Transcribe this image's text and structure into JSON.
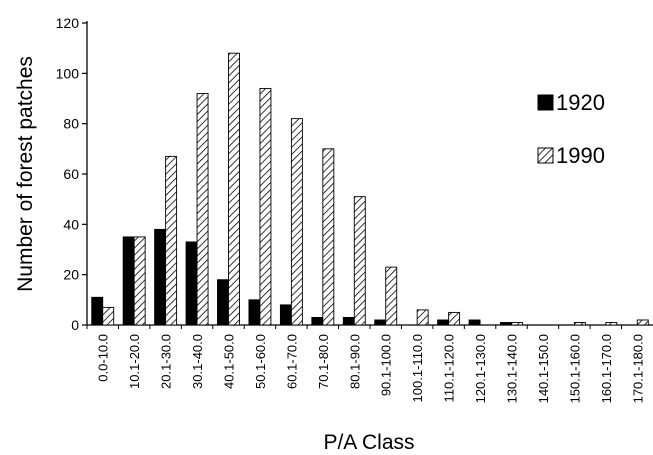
{
  "chart_data": {
    "type": "bar",
    "categories": [
      "0.0-10.0",
      "10.1-20.0",
      "20.1-30.0",
      "30.1-40.0",
      "40.1-50.0",
      "50.1-60.0",
      "60.1-70.0",
      "70.1-80.0",
      "80.1-90.0",
      "90.1-100.0",
      "100.1-110.0",
      "110.1-120.0",
      "120.1-130.0",
      "130.1-140.0",
      "140.1-150.0",
      "150.1-160.0",
      "160.1-170.0",
      "170.1-180.0"
    ],
    "series": [
      {
        "name": "1920",
        "color": "#000000",
        "pattern": "solid",
        "values": [
          11,
          35,
          38,
          33,
          18,
          10,
          8,
          3,
          3,
          2,
          0,
          2,
          2,
          1,
          0,
          0,
          0,
          0
        ]
      },
      {
        "name": "1990",
        "color": "#ffffff",
        "pattern": "diagonal-hatch",
        "values": [
          7,
          35,
          67,
          92,
          108,
          94,
          82,
          70,
          51,
          23,
          6,
          5,
          0,
          1,
          0,
          1,
          1,
          2
        ]
      }
    ],
    "xlabel": "P/A Class",
    "ylabel": "Number of forest patches",
    "ylim": [
      0,
      120
    ],
    "yticks": [
      "0",
      "20",
      "40",
      "60",
      "80",
      "100",
      "120"
    ],
    "legend_position": "right",
    "grid": false
  }
}
